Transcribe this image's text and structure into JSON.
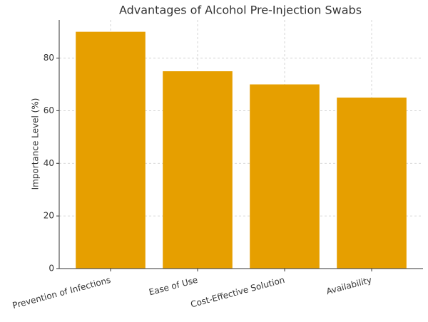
{
  "chart_data": {
    "type": "bar",
    "title": "Advantages of Alcohol Pre-Injection Swabs",
    "y_label": "Importance Level (%)",
    "categories": [
      "Prevention of Infections",
      "Ease of Use",
      "Cost-Effective Solution",
      "Availability"
    ],
    "values": [
      90,
      75,
      70,
      65
    ],
    "color": "#e69f00",
    "ylim": [
      0,
      94.5
    ],
    "yticks": [
      0,
      20,
      40,
      60,
      80
    ],
    "grid": true
  }
}
